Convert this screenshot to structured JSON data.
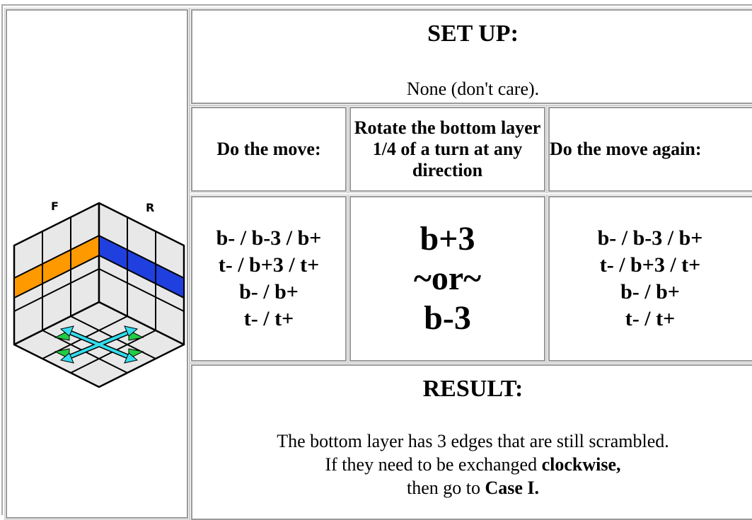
{
  "image_labels": [
    "F",
    "R"
  ],
  "setup": {
    "title": "SET UP:",
    "text": "None (don't care)."
  },
  "steps": {
    "headers": [
      "Do the move:",
      "Rotate the bottom layer 1/4 of a turn at any direction",
      "Do the move again:"
    ],
    "moves": [
      [
        "b- / b-3 / b+",
        "t- / b+3 / t+",
        "b- / b+",
        "t- / t+"
      ],
      [
        "b+3",
        "~or~",
        "b-3"
      ],
      [
        "b- / b-3 / b+",
        "t- / b+3 / t+",
        "b- / b+",
        "t- / t+"
      ]
    ]
  },
  "result": {
    "title": "RESULT:",
    "lines": [
      {
        "text": "The bottom layer has 3 edges that are still scrambled."
      },
      {
        "text": "If they need to be exchanged",
        "bold": "clockwise,"
      },
      {
        "text": "then go to",
        "bold": "Case I."
      }
    ]
  }
}
